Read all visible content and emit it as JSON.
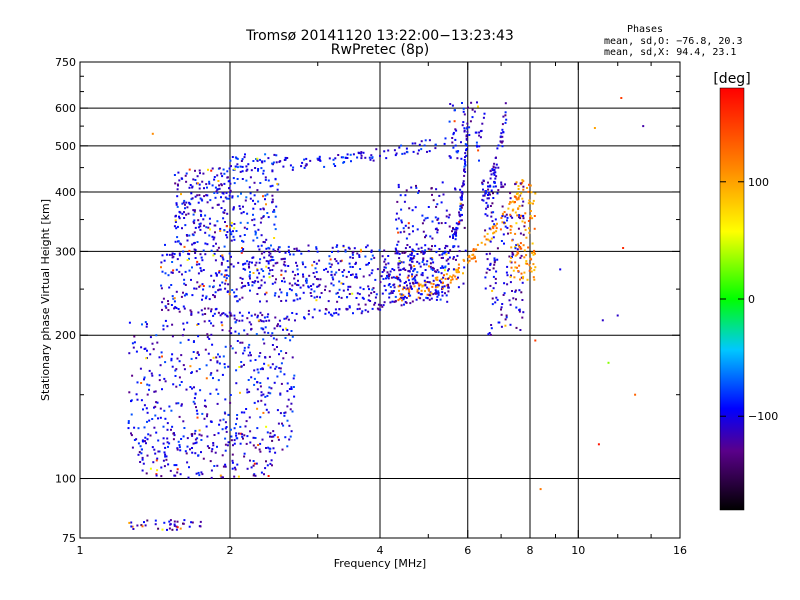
{
  "chart_data": {
    "type": "scatter",
    "title": "Tromsø 20141120 13:22:00−13:23:43",
    "subtitle": "RwPretec (8p)",
    "xlabel": "Frequency [MHz]",
    "ylabel": "Stationary phase Virtual Height [km]",
    "x_scale": "log",
    "y_scale": "log",
    "xlim": [
      1,
      16
    ],
    "ylim": [
      75,
      750
    ],
    "x_ticks": [
      1,
      2,
      4,
      6,
      8,
      10,
      16
    ],
    "x_tick_labels": [
      "1",
      "2",
      "4",
      "6",
      "8",
      "10",
      "16"
    ],
    "x_grid": [
      2,
      4,
      6,
      8,
      10
    ],
    "y_ticks": [
      75,
      100,
      200,
      300,
      400,
      500,
      600,
      750
    ],
    "y_tick_labels": [
      "75",
      "100",
      "200",
      "300",
      "400",
      "500",
      "600",
      "750"
    ],
    "y_grid": [
      100,
      200,
      300,
      400,
      500,
      600
    ],
    "grid": true,
    "stats": {
      "heading": "Phases",
      "o_line": "mean, sd,O: −76.8, 20.3",
      "x_line": "mean, sd,X:  94.4, 23.1"
    },
    "colorbar": {
      "label": "[deg]",
      "range": [
        -180,
        180
      ],
      "tick_values": [
        100,
        0,
        -100
      ],
      "tick_labels": [
        "100",
        "0",
        "−100"
      ],
      "colormap": "rainbow"
    },
    "traces": [
      {
        "x_range": [
          1.45,
          5.5
        ],
        "h_start": 230,
        "h_min": 218,
        "h_end": 250,
        "phase": -110,
        "count": 150,
        "spread": 0.008
      },
      {
        "x_range": [
          2.0,
          5.6
        ],
        "h_start": 455,
        "h_end": 515,
        "phase": -95,
        "count": 110,
        "spread": 0.01
      },
      {
        "x_range": [
          4.3,
          7.8
        ],
        "h_start": 245,
        "h_end": 420,
        "phase": 110,
        "count": 140,
        "spread": 0.012
      },
      {
        "x_range": [
          5.6,
          6.0
        ],
        "h_start": 320,
        "h_end": 560,
        "phase": -100,
        "count": 70,
        "spread": 0.015
      },
      {
        "x_range": [
          6.4,
          7.2
        ],
        "h_start": 400,
        "h_end": 620,
        "phase": -110,
        "count": 70,
        "spread": 0.02
      }
    ],
    "regions": [
      {
        "x_range": [
          1.45,
          5.5
        ],
        "h_range": [
          235,
          310
        ],
        "phase": -100,
        "count": 650
      },
      {
        "x_range": [
          1.25,
          2.7
        ],
        "h_range": [
          115,
          215
        ],
        "phase": -100,
        "count": 450
      },
      {
        "x_range": [
          1.3,
          2.5
        ],
        "h_range": [
          100,
          125
        ],
        "phase": -110,
        "count": 160
      },
      {
        "x_range": [
          1.55,
          2.05
        ],
        "h_range": [
          310,
          450
        ],
        "phase": -100,
        "count": 220
      },
      {
        "x_range": [
          2.0,
          2.5
        ],
        "h_range": [
          310,
          480
        ],
        "phase": -95,
        "count": 120
      },
      {
        "x_range": [
          4.3,
          6.0
        ],
        "h_range": [
          250,
          420
        ],
        "phase": -110,
        "count": 180
      },
      {
        "x_range": [
          6.5,
          7.8
        ],
        "h_range": [
          200,
          420
        ],
        "phase": -110,
        "count": 160
      },
      {
        "x_range": [
          7.3,
          8.2
        ],
        "h_range": [
          260,
          420
        ],
        "phase": 110,
        "count": 100
      },
      {
        "x_range": [
          1.25,
          1.75
        ],
        "h_range": [
          78,
          82
        ],
        "phase": -115,
        "count": 40
      },
      {
        "x_range": [
          5.5,
          6.5
        ],
        "h_range": [
          460,
          620
        ],
        "phase": -105,
        "count": 60
      }
    ],
    "isolated_points": [
      {
        "x": 1.4,
        "h": 530,
        "phase": 110
      },
      {
        "x": 8.2,
        "h": 195,
        "phase": 150
      },
      {
        "x": 9.2,
        "h": 275,
        "phase": -100
      },
      {
        "x": 10.8,
        "h": 545,
        "phase": 100
      },
      {
        "x": 11.0,
        "h": 118,
        "phase": 170
      },
      {
        "x": 11.2,
        "h": 215,
        "phase": -110
      },
      {
        "x": 11.5,
        "h": 175,
        "phase": 30
      },
      {
        "x": 12.2,
        "h": 630,
        "phase": 150
      },
      {
        "x": 12.3,
        "h": 305,
        "phase": 160
      },
      {
        "x": 13.0,
        "h": 150,
        "phase": 130
      },
      {
        "x": 13.5,
        "h": 550,
        "phase": -120
      },
      {
        "x": 12.0,
        "h": 220,
        "phase": -110
      },
      {
        "x": 8.4,
        "h": 95,
        "phase": 120
      }
    ]
  }
}
